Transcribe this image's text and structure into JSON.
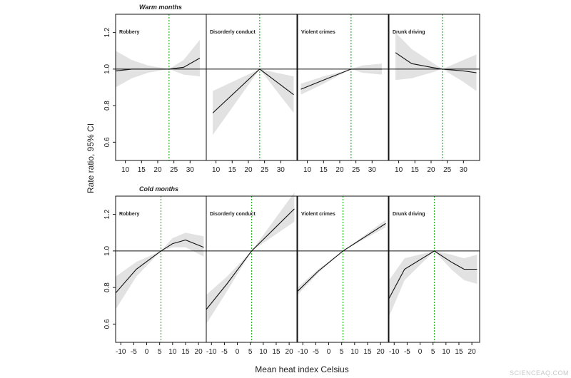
{
  "figure": {
    "ylabel": "Rate ratio, 95% CI",
    "xlabel": "Mean heat index  Celsius",
    "watermark": "SCIENCEAQ.COM"
  },
  "chart_data": [
    {
      "type": "line",
      "section": "Warm months",
      "title": "Robbery",
      "xlim": [
        7,
        35
      ],
      "ylim": [
        0.5,
        1.3
      ],
      "xticks": [
        10,
        15,
        20,
        25,
        30
      ],
      "yticks": [
        0.6,
        0.8,
        1.0,
        1.2
      ],
      "ytick_labels": [
        "0.6",
        "0.8",
        "1.0",
        "1.2"
      ],
      "reference_x": 23.5,
      "reference_y": 1.0,
      "x": [
        7,
        12,
        17,
        23.5,
        28,
        33
      ],
      "y": [
        0.99,
        1.0,
        1.0,
        1.0,
        1.01,
        1.06
      ],
      "lower": [
        0.9,
        0.95,
        0.98,
        1.0,
        0.97,
        0.96
      ],
      "upper": [
        1.1,
        1.05,
        1.02,
        1.0,
        1.05,
        1.16
      ]
    },
    {
      "type": "line",
      "section": "Warm months",
      "title": "Disorderly conduct",
      "xlim": [
        7,
        35
      ],
      "ylim": [
        0.5,
        1.3
      ],
      "xticks": [
        10,
        15,
        20,
        25,
        30
      ],
      "yticks": [
        0.6,
        0.8,
        1.0,
        1.2
      ],
      "reference_x": 23.5,
      "reference_y": 1.0,
      "x": [
        9,
        23.5,
        34
      ],
      "y": [
        0.76,
        1.0,
        0.86
      ],
      "lower": [
        0.64,
        1.0,
        0.76
      ],
      "upper": [
        0.88,
        1.0,
        0.96
      ]
    },
    {
      "type": "line",
      "section": "Warm months",
      "title": "Violent crimes",
      "xlim": [
        7,
        35
      ],
      "ylim": [
        0.5,
        1.3
      ],
      "xticks": [
        10,
        15,
        20,
        25,
        30
      ],
      "yticks": [
        0.6,
        0.8,
        1.0,
        1.2
      ],
      "reference_x": 23.5,
      "reference_y": 1.0,
      "x": [
        8,
        15,
        23.5,
        27,
        33
      ],
      "y": [
        0.89,
        0.94,
        1.0,
        1.0,
        1.0
      ],
      "lower": [
        0.86,
        0.92,
        1.0,
        0.98,
        0.97
      ],
      "upper": [
        0.92,
        0.96,
        1.0,
        1.02,
        1.03
      ]
    },
    {
      "type": "line",
      "section": "Warm months",
      "title": "Drunk driving",
      "xlim": [
        7,
        35
      ],
      "ylim": [
        0.5,
        1.3
      ],
      "xticks": [
        10,
        15,
        20,
        25,
        30
      ],
      "yticks": [
        0.6,
        0.8,
        1.0,
        1.2
      ],
      "reference_x": 23.5,
      "reference_y": 1.0,
      "x": [
        9,
        14,
        20,
        23.5,
        30,
        34
      ],
      "y": [
        1.09,
        1.03,
        1.01,
        1.0,
        0.99,
        0.98
      ],
      "lower": [
        0.94,
        0.95,
        0.98,
        1.0,
        0.93,
        0.88
      ],
      "upper": [
        1.2,
        1.11,
        1.04,
        1.0,
        1.05,
        1.08
      ]
    },
    {
      "type": "line",
      "section": "Cold months",
      "title": "Robbery",
      "xlim": [
        -12,
        23
      ],
      "ylim": [
        0.5,
        1.3
      ],
      "xticks": [
        -10,
        -5,
        0,
        5,
        10,
        15,
        20
      ],
      "yticks": [
        0.6,
        0.8,
        1.0,
        1.2
      ],
      "ytick_labels": [
        "0.6",
        "0.8",
        "1.0",
        "1.2"
      ],
      "reference_x": 5.5,
      "reference_y": 1.0,
      "x": [
        -12,
        -4,
        5.5,
        10,
        15,
        22
      ],
      "y": [
        0.77,
        0.9,
        1.0,
        1.04,
        1.06,
        1.02
      ],
      "lower": [
        0.68,
        0.86,
        1.0,
        1.02,
        1.02,
        0.97
      ],
      "upper": [
        0.86,
        0.94,
        1.0,
        1.07,
        1.1,
        1.08
      ]
    },
    {
      "type": "line",
      "section": "Cold months",
      "title": "Disorderly conduct",
      "xlim": [
        -12,
        23
      ],
      "ylim": [
        0.5,
        1.3
      ],
      "xticks": [
        -10,
        -5,
        0,
        5,
        10,
        15,
        20
      ],
      "yticks": [
        0.6,
        0.8,
        1.0,
        1.2
      ],
      "reference_x": 5.5,
      "reference_y": 1.0,
      "x": [
        -12,
        -4,
        5.5,
        22
      ],
      "y": [
        0.68,
        0.82,
        1.0,
        1.23
      ],
      "lower": [
        0.6,
        0.78,
        1.0,
        1.16
      ],
      "upper": [
        0.76,
        0.86,
        1.0,
        1.32
      ]
    },
    {
      "type": "line",
      "section": "Cold months",
      "title": "Violent crimes",
      "xlim": [
        -12,
        23
      ],
      "ylim": [
        0.5,
        1.3
      ],
      "xticks": [
        -10,
        -5,
        0,
        5,
        10,
        15,
        20
      ],
      "yticks": [
        0.6,
        0.8,
        1.0,
        1.2
      ],
      "reference_x": 5.5,
      "reference_y": 1.0,
      "x": [
        -12,
        -4,
        5.5,
        22
      ],
      "y": [
        0.78,
        0.89,
        1.0,
        1.15
      ],
      "lower": [
        0.76,
        0.88,
        1.0,
        1.13
      ],
      "upper": [
        0.8,
        0.9,
        1.0,
        1.17
      ]
    },
    {
      "type": "line",
      "section": "Cold months",
      "title": "Drunk driving",
      "xlim": [
        -12,
        23
      ],
      "ylim": [
        0.5,
        1.3
      ],
      "xticks": [
        -10,
        -5,
        0,
        5,
        10,
        15,
        20
      ],
      "yticks": [
        0.6,
        0.8,
        1.0,
        1.2
      ],
      "reference_x": 5.5,
      "reference_y": 1.0,
      "x": [
        -12,
        -6,
        5.5,
        12,
        17,
        22
      ],
      "y": [
        0.74,
        0.9,
        1.0,
        0.94,
        0.9,
        0.9
      ],
      "lower": [
        0.64,
        0.84,
        1.0,
        0.9,
        0.84,
        0.82
      ],
      "upper": [
        0.84,
        0.96,
        1.0,
        0.98,
        0.96,
        0.98
      ]
    }
  ]
}
